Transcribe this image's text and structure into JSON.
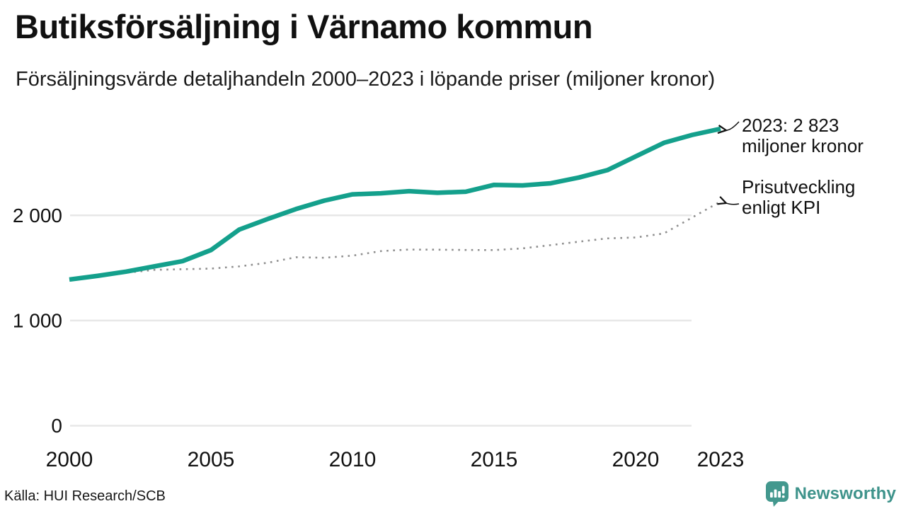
{
  "header": {
    "title": "Butiksförsäljning i Värnamo kommun",
    "subtitle": "Försäljningsvärde detaljhandeln 2000–2023 i löpande priser (miljoner kronor)"
  },
  "annotations": {
    "latest": {
      "line1": "2023: 2 823",
      "line2": "miljoner kronor"
    },
    "kpi": {
      "line1": "Prisutveckling",
      "line2": "enligt KPI"
    }
  },
  "footer": {
    "source": "Källa: HUI Research/SCB",
    "brand_name": "Newsworthy",
    "brand_icon": "newsworthy-speech-bubble-bar-chart-icon"
  },
  "colors": {
    "series_current": "#14A08C",
    "series_kpi": "#8F8F8F",
    "grid": "#E7E7E7",
    "text": "#111111",
    "brand": "#3E938B",
    "arrow": "#111111"
  },
  "chart_data": {
    "type": "line",
    "title": "Butiksförsäljning i Värnamo kommun",
    "subtitle": "Försäljningsvärde detaljhandeln 2000–2023 i löpande priser (miljoner kronor)",
    "xlabel": "",
    "ylabel": "miljoner kronor",
    "x": [
      2000,
      2001,
      2002,
      2003,
      2004,
      2005,
      2006,
      2007,
      2008,
      2009,
      2010,
      2011,
      2012,
      2013,
      2014,
      2015,
      2016,
      2017,
      2018,
      2019,
      2020,
      2021,
      2022,
      2023
    ],
    "series": [
      {
        "name": "Butiksförsäljning i löpande priser",
        "style": "solid",
        "color": "#14A08C",
        "values": [
          1390,
          1425,
          1465,
          1515,
          1565,
          1670,
          1865,
          1965,
          2060,
          2140,
          2200,
          2210,
          2230,
          2215,
          2225,
          2290,
          2285,
          2305,
          2360,
          2430,
          2560,
          2690,
          2765,
          2823
        ]
      },
      {
        "name": "Prisutveckling enligt KPI",
        "style": "dotted",
        "color": "#8F8F8F",
        "values": [
          1390,
          1424,
          1454,
          1482,
          1488,
          1494,
          1515,
          1549,
          1602,
          1597,
          1617,
          1660,
          1675,
          1674,
          1671,
          1670,
          1686,
          1717,
          1750,
          1781,
          1790,
          1828,
          1980,
          2132
        ]
      }
    ],
    "last_value_label": "2023: 2 823 miljoner kronor",
    "x_ticks": [
      2000,
      2005,
      2010,
      2015,
      2020,
      2023
    ],
    "x_tick_labels": [
      "2000",
      "2005",
      "2010",
      "2015",
      "2020",
      "2023"
    ],
    "y_ticks": [
      0,
      1000,
      2000
    ],
    "y_tick_labels": [
      "0",
      "1 000",
      "2 000"
    ],
    "ylim": [
      0,
      3000
    ],
    "grid": "horizontal",
    "legend_position": "annotated-right"
  }
}
